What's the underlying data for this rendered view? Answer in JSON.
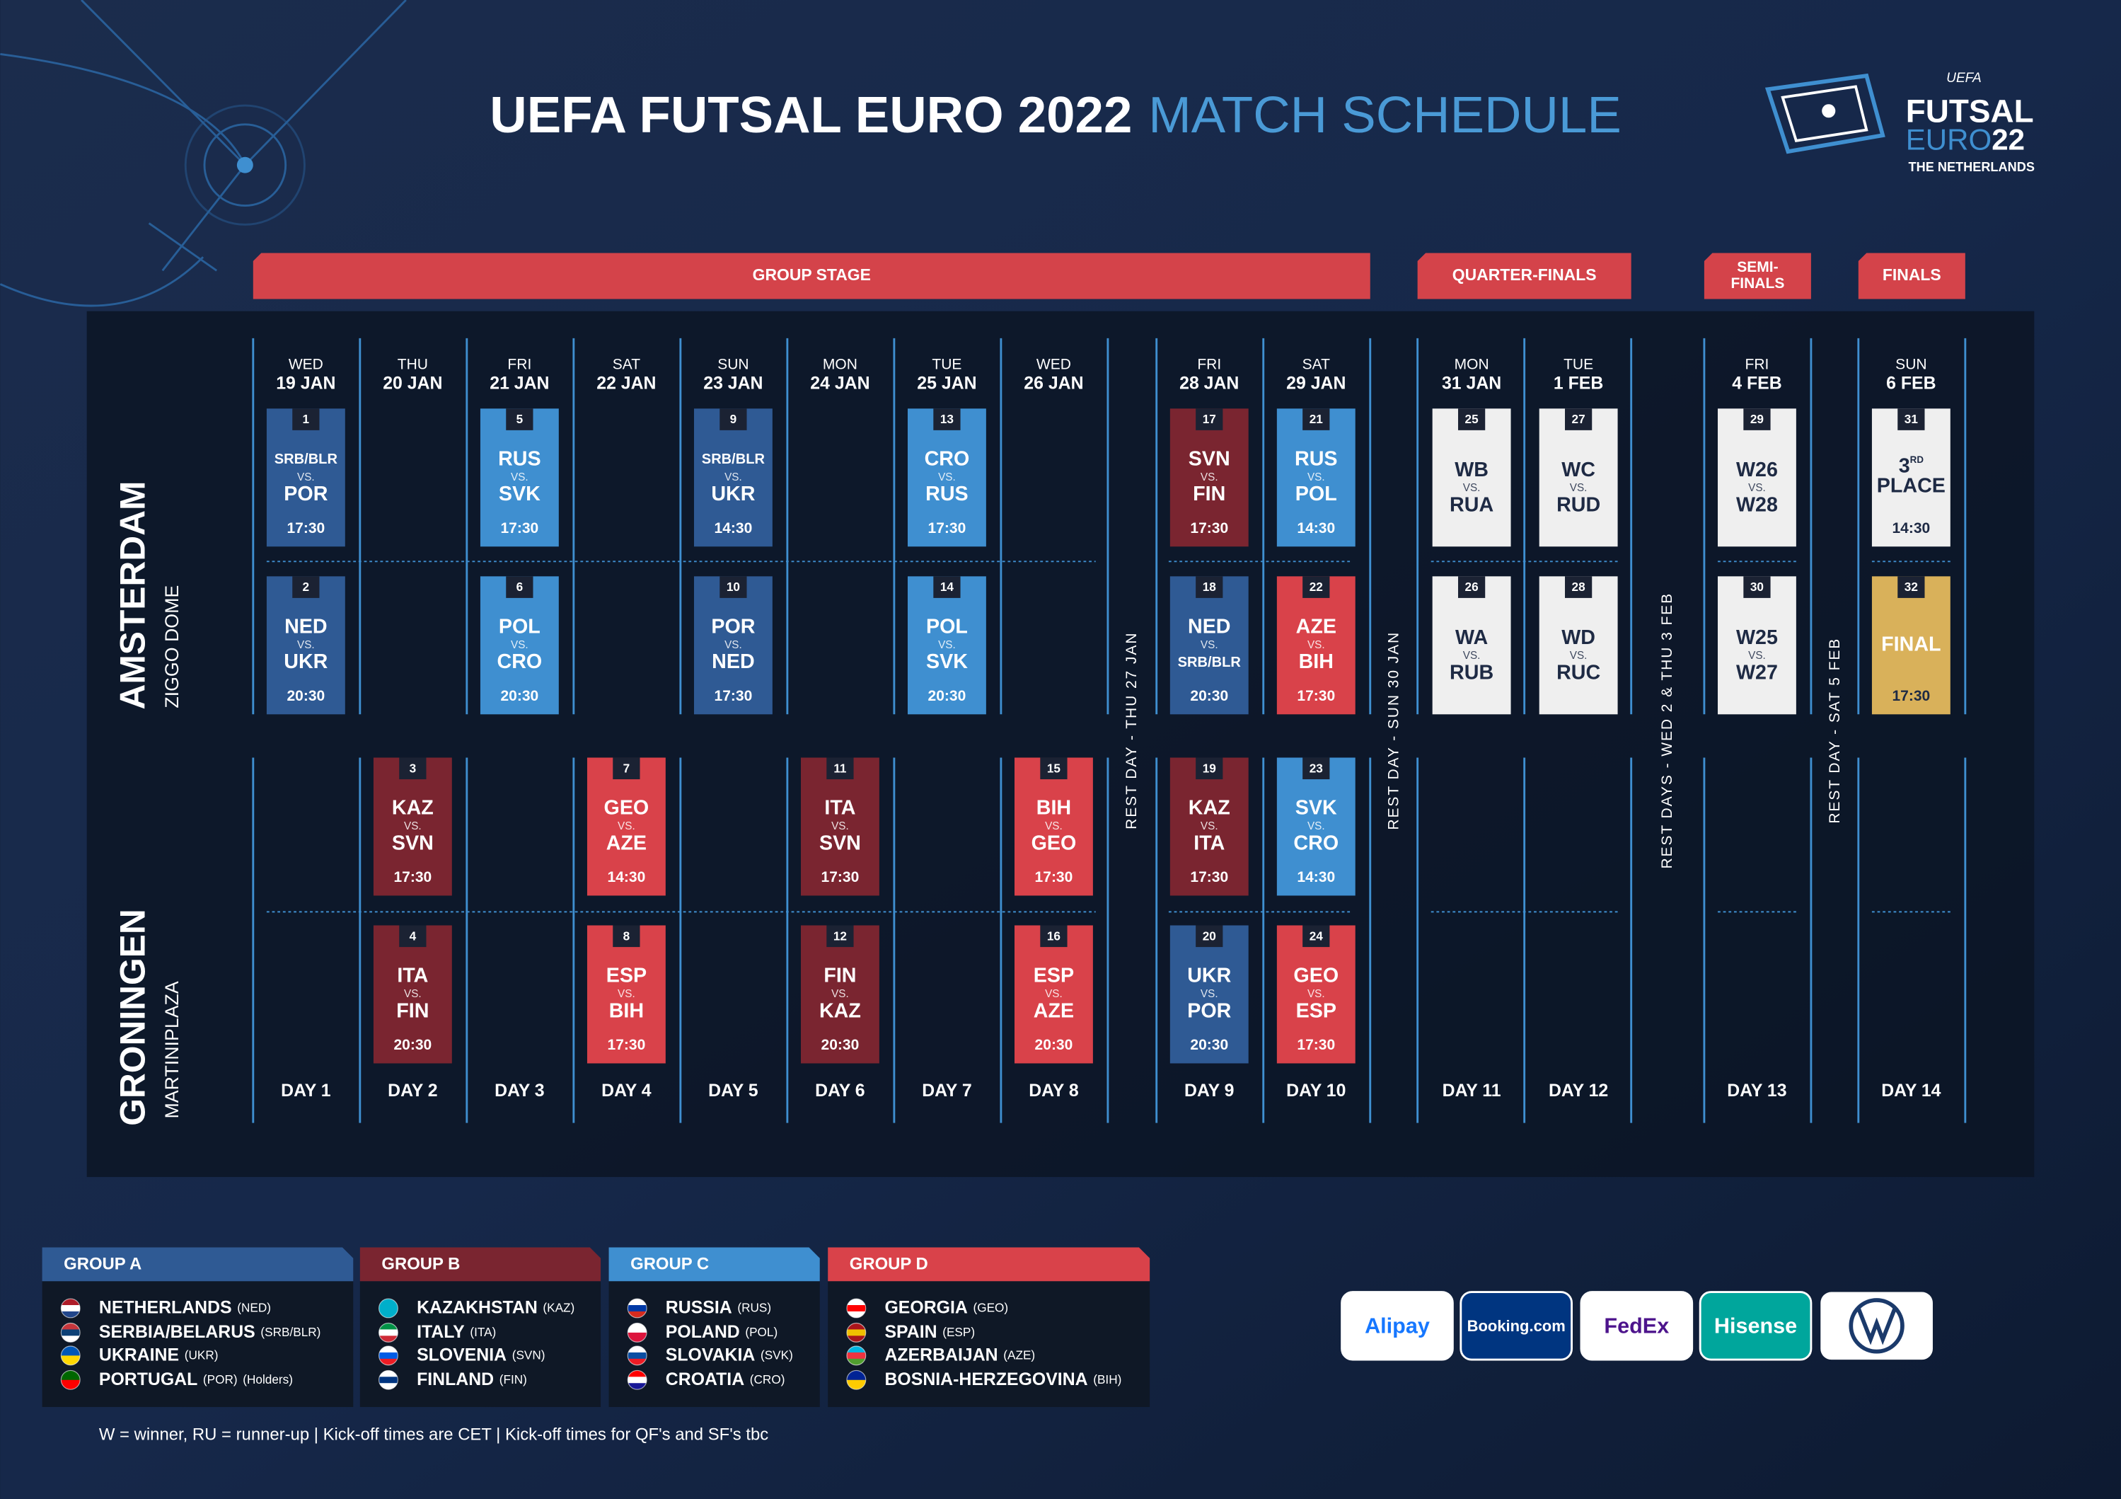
{
  "header": {
    "title": "UEFA FUTSAL EURO 2022",
    "title_accent": "MATCH SCHEDULE"
  },
  "logo": {
    "org": "UEFA",
    "line1": "FUTSAL",
    "line2": "EURO",
    "year": "22",
    "country": "THE NETHERLANDS"
  },
  "stages": [
    {
      "lines": [
        "GROUP STAGE"
      ]
    },
    {
      "lines": [
        "QUARTER-FINALS"
      ]
    },
    {
      "lines": [
        "SEMI-",
        "FINALS"
      ]
    },
    {
      "lines": [
        "FINALS"
      ]
    }
  ],
  "venues": [
    {
      "city": "AMSTERDAM",
      "arena": "ZIGGO DOME"
    },
    {
      "city": "GRONINGEN",
      "arena": "MARTINIPLAZA"
    }
  ],
  "vs": "VS.",
  "days": [
    {
      "weekday": "WED",
      "date": "19 JAN",
      "label": "DAY 1",
      "matches": [
        {
          "number": 1,
          "home": "SRB/BLR",
          "away": "POR",
          "time": "17:30",
          "color": "#2f5a94",
          "text_color": "#ffffff"
        },
        {
          "number": 2,
          "home": "NED",
          "away": "UKR",
          "time": "20:30",
          "color": "#2f5a94",
          "text_color": "#ffffff"
        },
        null,
        null
      ]
    },
    {
      "weekday": "THU",
      "date": "20 JAN",
      "label": "DAY 2",
      "matches": [
        null,
        null,
        {
          "number": 3,
          "home": "KAZ",
          "away": "SVN",
          "time": "17:30",
          "color": "#7a2530",
          "text_color": "#ffffff"
        },
        {
          "number": 4,
          "home": "ITA",
          "away": "FIN",
          "time": "20:30",
          "color": "#7a2530",
          "text_color": "#ffffff"
        }
      ]
    },
    {
      "weekday": "FRI",
      "date": "21 JAN",
      "label": "DAY 3",
      "matches": [
        {
          "number": 5,
          "home": "RUS",
          "away": "SVK",
          "time": "17:30",
          "color": "#3f8fd0",
          "text_color": "#ffffff"
        },
        {
          "number": 6,
          "home": "POL",
          "away": "CRO",
          "time": "20:30",
          "color": "#3f8fd0",
          "text_color": "#ffffff"
        },
        null,
        null
      ]
    },
    {
      "weekday": "SAT",
      "date": "22 JAN",
      "label": "DAY 4",
      "matches": [
        null,
        null,
        {
          "number": 7,
          "home": "GEO",
          "away": "AZE",
          "time": "14:30",
          "color": "#d9424a",
          "text_color": "#ffffff"
        },
        {
          "number": 8,
          "home": "ESP",
          "away": "BIH",
          "time": "17:30",
          "color": "#d9424a",
          "text_color": "#ffffff"
        }
      ]
    },
    {
      "weekday": "SUN",
      "date": "23 JAN",
      "label": "DAY 5",
      "matches": [
        {
          "number": 9,
          "home": "SRB/BLR",
          "away": "UKR",
          "time": "14:30",
          "color": "#2f5a94",
          "text_color": "#ffffff"
        },
        {
          "number": 10,
          "home": "POR",
          "away": "NED",
          "time": "17:30",
          "color": "#2f5a94",
          "text_color": "#ffffff"
        },
        null,
        null
      ]
    },
    {
      "weekday": "MON",
      "date": "24 JAN",
      "label": "DAY 6",
      "matches": [
        null,
        null,
        {
          "number": 11,
          "home": "ITA",
          "away": "SVN",
          "time": "17:30",
          "color": "#7a2530",
          "text_color": "#ffffff"
        },
        {
          "number": 12,
          "home": "FIN",
          "away": "KAZ",
          "time": "20:30",
          "color": "#7a2530",
          "text_color": "#ffffff"
        }
      ]
    },
    {
      "weekday": "TUE",
      "date": "25 JAN",
      "label": "DAY 7",
      "matches": [
        {
          "number": 13,
          "home": "CRO",
          "away": "RUS",
          "time": "17:30",
          "color": "#3f8fd0",
          "text_color": "#ffffff"
        },
        {
          "number": 14,
          "home": "POL",
          "away": "SVK",
          "time": "20:30",
          "color": "#3f8fd0",
          "text_color": "#ffffff"
        },
        null,
        null
      ]
    },
    {
      "weekday": "WED",
      "date": "26 JAN",
      "label": "DAY 8",
      "matches": [
        null,
        null,
        {
          "number": 15,
          "home": "BIH",
          "away": "GEO",
          "time": "17:30",
          "color": "#d9424a",
          "text_color": "#ffffff"
        },
        {
          "number": 16,
          "home": "ESP",
          "away": "AZE",
          "time": "20:30",
          "color": "#d9424a",
          "text_color": "#ffffff"
        }
      ]
    },
    {
      "weekday": "FRI",
      "date": "28 JAN",
      "label": "DAY 9",
      "matches": [
        {
          "number": 17,
          "home": "SVN",
          "away": "FIN",
          "time": "17:30",
          "color": "#7a2530",
          "text_color": "#ffffff"
        },
        {
          "number": 18,
          "home": "NED",
          "away": "SRB/BLR",
          "time": "20:30",
          "color": "#2f5a94",
          "text_color": "#ffffff"
        },
        {
          "number": 19,
          "home": "KAZ",
          "away": "ITA",
          "time": "17:30",
          "color": "#7a2530",
          "text_color": "#ffffff"
        },
        {
          "number": 20,
          "home": "UKR",
          "away": "POR",
          "time": "20:30",
          "color": "#2f5a94",
          "text_color": "#ffffff"
        }
      ]
    },
    {
      "weekday": "SAT",
      "date": "29 JAN",
      "label": "DAY 10",
      "matches": [
        {
          "number": 21,
          "home": "RUS",
          "away": "POL",
          "time": "14:30",
          "color": "#3f8fd0",
          "text_color": "#ffffff"
        },
        {
          "number": 22,
          "home": "AZE",
          "away": "BIH",
          "time": "17:30",
          "color": "#d9424a",
          "text_color": "#ffffff"
        },
        {
          "number": 23,
          "home": "SVK",
          "away": "CRO",
          "time": "14:30",
          "color": "#3f8fd0",
          "text_color": "#ffffff"
        },
        {
          "number": 24,
          "home": "GEO",
          "away": "ESP",
          "time": "17:30",
          "color": "#d9424a",
          "text_color": "#ffffff"
        }
      ]
    },
    {
      "weekday": "MON",
      "date": "31 JAN",
      "label": "DAY 11",
      "matches": [
        {
          "number": 25,
          "home": "WB",
          "away": "RUA",
          "color": "#efefef",
          "text_color": "#1e2a44"
        },
        {
          "number": 26,
          "home": "WA",
          "away": "RUB",
          "color": "#efefef",
          "text_color": "#1e2a44"
        },
        null,
        null
      ]
    },
    {
      "weekday": "TUE",
      "date": "1 FEB",
      "label": "DAY 12",
      "matches": [
        {
          "number": 27,
          "home": "WC",
          "away": "RUD",
          "color": "#efefef",
          "text_color": "#1e2a44"
        },
        {
          "number": 28,
          "home": "WD",
          "away": "RUC",
          "color": "#efefef",
          "text_color": "#1e2a44"
        },
        null,
        null
      ]
    },
    {
      "weekday": "FRI",
      "date": "4 FEB",
      "label": "DAY 13",
      "matches": [
        {
          "number": 29,
          "home": "W26",
          "away": "W28",
          "color": "#efefef",
          "text_color": "#1e2a44"
        },
        {
          "number": 30,
          "home": "W25",
          "away": "W27",
          "color": "#efefef",
          "text_color": "#1e2a44"
        },
        null,
        null
      ]
    },
    {
      "weekday": "SUN",
      "date": "6 FEB",
      "label": "DAY 14",
      "matches": [
        {
          "number": 31,
          "home": "3",
          "home_sup": "RD",
          "away": "PLACE",
          "time": "14:30",
          "color": "#efefef",
          "text_color": "#1e2a44"
        },
        {
          "number": 32,
          "home": "FINAL",
          "time": "17:30",
          "color": "#d9b15a",
          "text_color": "#ffffff"
        },
        null,
        null
      ]
    }
  ],
  "rest_days": [
    "REST DAY - THU 27 JAN",
    "REST DAY - SUN 30 JAN",
    "REST DAYS - WED 2 & THU 3 FEB",
    "REST DAY - SAT 5 FEB"
  ],
  "groups": [
    {
      "name": "GROUP A",
      "color": "#2f5a94",
      "teams": [
        {
          "name": "NETHERLANDS",
          "code": "(NED)",
          "flag": [
            "#ae1c28",
            "#ffffff",
            "#21468b"
          ]
        },
        {
          "name": "SERBIA/BELARUS",
          "code": "(SRB/BLR)",
          "flag": [
            "#c6363c",
            "#0c4076",
            "#ffffff"
          ]
        },
        {
          "name": "UKRAINE",
          "code": "(UKR)",
          "flag": [
            "#0057b7",
            "#ffd700"
          ]
        },
        {
          "name": "PORTUGAL",
          "code": "(POR)",
          "note": "(Holders)",
          "flag": [
            "#006600",
            "#ff0000"
          ]
        }
      ]
    },
    {
      "name": "GROUP B",
      "color": "#7a2530",
      "teams": [
        {
          "name": "KAZAKHSTAN",
          "code": "(KAZ)",
          "flag": [
            "#00afca"
          ]
        },
        {
          "name": "ITALY",
          "code": "(ITA)",
          "flag": [
            "#009246",
            "#ffffff",
            "#ce2b37"
          ]
        },
        {
          "name": "SLOVENIA",
          "code": "(SVN)",
          "flag": [
            "#ffffff",
            "#005ce5",
            "#ed1c24"
          ]
        },
        {
          "name": "FINLAND",
          "code": "(FIN)",
          "flag": [
            "#ffffff",
            "#003580",
            "#ffffff"
          ]
        }
      ]
    },
    {
      "name": "GROUP C",
      "color": "#3f8fd0",
      "teams": [
        {
          "name": "RUSSIA",
          "code": "(RUS)",
          "flag": [
            "#ffffff",
            "#0039a6",
            "#d52b1e"
          ]
        },
        {
          "name": "POLAND",
          "code": "(POL)",
          "flag": [
            "#ffffff",
            "#dc143c"
          ]
        },
        {
          "name": "SLOVAKIA",
          "code": "(SVK)",
          "flag": [
            "#ffffff",
            "#0b4ea2",
            "#ee1c25"
          ]
        },
        {
          "name": "CROATIA",
          "code": "(CRO)",
          "flag": [
            "#ff0000",
            "#ffffff",
            "#171796"
          ]
        }
      ]
    },
    {
      "name": "GROUP D",
      "color": "#d9424a",
      "teams": [
        {
          "name": "GEORGIA",
          "code": "(GEO)",
          "flag": [
            "#ffffff",
            "#ff0000",
            "#ffffff"
          ]
        },
        {
          "name": "SPAIN",
          "code": "(ESP)",
          "flag": [
            "#aa151b",
            "#f1bf00",
            "#aa151b"
          ]
        },
        {
          "name": "AZERBAIJAN",
          "code": "(AZE)",
          "flag": [
            "#00b5e2",
            "#ef3340",
            "#509e2f"
          ]
        },
        {
          "name": "BOSNIA-HERZEGOVINA",
          "code": "(BIH)",
          "flag": [
            "#002395",
            "#fecb00"
          ]
        }
      ]
    }
  ],
  "footnote": "W = winner, RU = runner-up | Kick-off times are CET | Kick-off times for QF's and SF's tbc",
  "sponsors": [
    {
      "name": "Alipay",
      "bg": "#ffffff",
      "fg": "#1677ff"
    },
    {
      "name": "Booking.com",
      "bg": "#003580",
      "fg": "#ffffff"
    },
    {
      "name": "FedEx",
      "bg": "#ffffff",
      "fg": "#4d148c"
    },
    {
      "name": "Hisense",
      "bg": "#00a69c",
      "fg": "#ffffff"
    }
  ]
}
